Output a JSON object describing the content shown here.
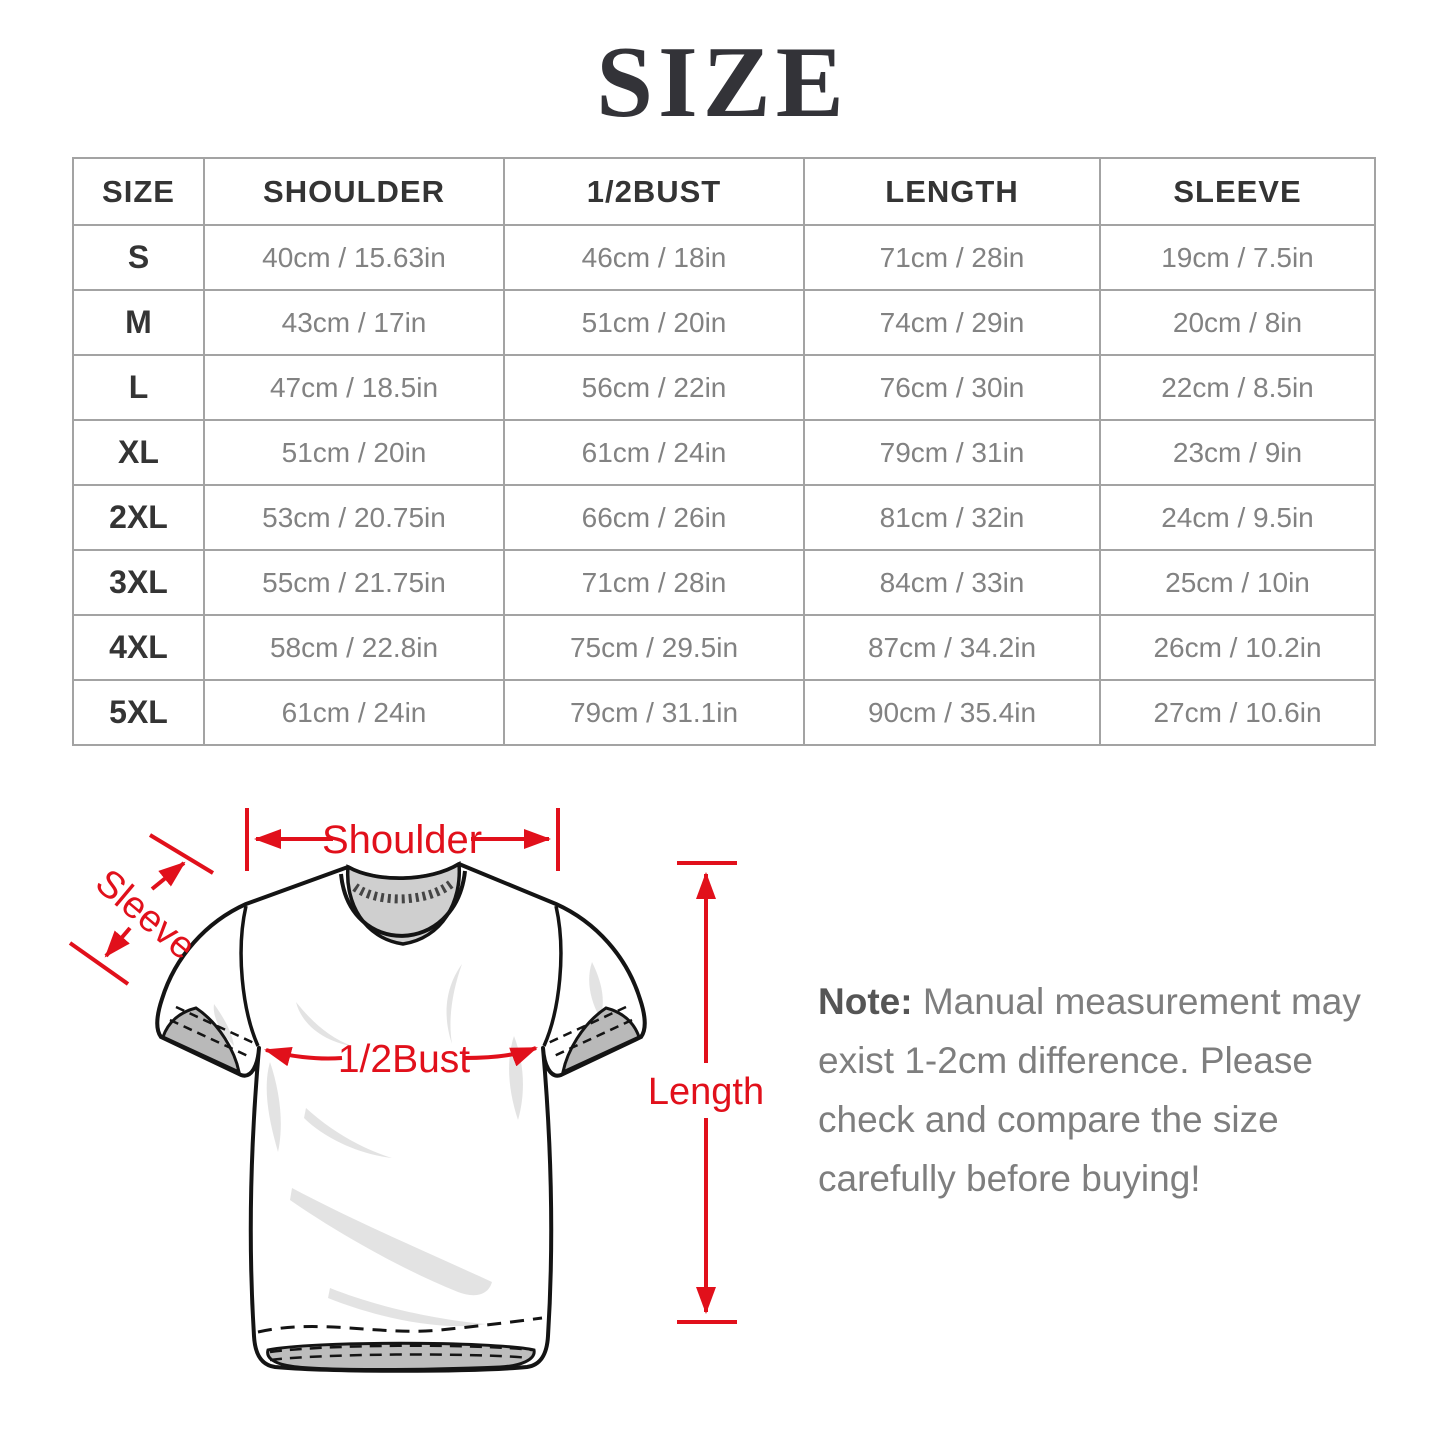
{
  "title": "SIZE",
  "table": {
    "headers": [
      "SIZE",
      "SHOULDER",
      "1/2BUST",
      "LENGTH",
      "SLEEVE"
    ],
    "rows": [
      {
        "size": "S",
        "shoulder": "40cm / 15.63in",
        "bust": "46cm / 18in",
        "length": "71cm / 28in",
        "sleeve": "19cm / 7.5in"
      },
      {
        "size": "M",
        "shoulder": "43cm / 17in",
        "bust": "51cm / 20in",
        "length": "74cm / 29in",
        "sleeve": "20cm / 8in"
      },
      {
        "size": "L",
        "shoulder": "47cm / 18.5in",
        "bust": "56cm / 22in",
        "length": "76cm / 30in",
        "sleeve": "22cm / 8.5in"
      },
      {
        "size": "XL",
        "shoulder": "51cm / 20in",
        "bust": "61cm / 24in",
        "length": "79cm / 31in",
        "sleeve": "23cm / 9in"
      },
      {
        "size": "2XL",
        "shoulder": "53cm / 20.75in",
        "bust": "66cm / 26in",
        "length": "81cm / 32in",
        "sleeve": "24cm / 9.5in"
      },
      {
        "size": "3XL",
        "shoulder": "55cm / 21.75in",
        "bust": "71cm / 28in",
        "length": "84cm / 33in",
        "sleeve": "25cm / 10in"
      },
      {
        "size": "4XL",
        "shoulder": "58cm / 22.8in",
        "bust": "75cm / 29.5in",
        "length": "87cm / 34.2in",
        "sleeve": "26cm / 10.2in"
      },
      {
        "size": "5XL",
        "shoulder": "61cm / 24in",
        "bust": "79cm / 31.1in",
        "length": "90cm / 35.4in",
        "sleeve": "27cm / 10.6in"
      }
    ]
  },
  "diagram": {
    "shoulder_label": "Shoulder",
    "sleeve_label": "Sleeve",
    "bust_label": "1/2Bust",
    "length_label": "Length",
    "accent_color": "#e1101b"
  },
  "note": {
    "prefix": "Note:",
    "body": " Manual measurement may exist 1-2cm difference. Please check and compare the size carefully before buying!"
  }
}
